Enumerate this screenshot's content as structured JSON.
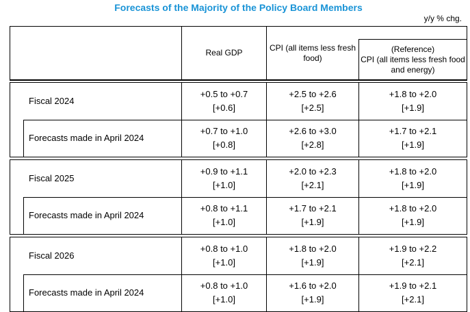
{
  "title": "Forecasts of the Majority of the Policy Board Members",
  "unit_note": "y/y % chg.",
  "colors": {
    "title_blue": "#1993d6",
    "border": "#000000",
    "text": "#000000",
    "background": "#ffffff"
  },
  "table": {
    "column_headers": {
      "period": "",
      "real_gdp": "Real GDP",
      "cpi": "CPI (all items less fresh food)",
      "reference_label": "(Reference)",
      "reference_name": "CPI (all items less fresh food and energy)"
    },
    "april_row_label": "Forecasts made in April 2024",
    "groups": [
      {
        "period": "Fiscal 2024",
        "current": {
          "gdp": "+0.5 to +0.7",
          "gdp_median": "[+0.6]",
          "cpi": "+2.5 to +2.6",
          "cpi_median": "[+2.5]",
          "ref": "+1.8 to +2.0",
          "ref_median": "[+1.9]"
        },
        "april_label": "Forecasts made in April 2024",
        "april": {
          "gdp": "+0.7 to +1.0",
          "gdp_median": "[+0.8]",
          "cpi": "+2.6 to +3.0",
          "cpi_median": "[+2.8]",
          "ref": "+1.7 to +2.1",
          "ref_median": "[+1.9]"
        }
      },
      {
        "period": "Fiscal 2025",
        "current": {
          "gdp": "+0.9 to +1.1",
          "gdp_median": "[+1.0]",
          "cpi": "+2.0 to +2.3",
          "cpi_median": "[+2.1]",
          "ref": "+1.8 to +2.0",
          "ref_median": "[+1.9]"
        },
        "april_label": "Forecasts made in April 2024",
        "april": {
          "gdp": "+0.8 to +1.1",
          "gdp_median": "[+1.0]",
          "cpi": "+1.7 to +2.1",
          "cpi_median": "[+1.9]",
          "ref": "+1.8 to +2.0",
          "ref_median": "[+1.9]"
        }
      },
      {
        "period": "Fiscal 2026",
        "current": {
          "gdp": "+0.8 to +1.0",
          "gdp_median": "[+1.0]",
          "cpi": "+1.8 to +2.0",
          "cpi_median": "[+1.9]",
          "ref": "+1.9 to +2.2",
          "ref_median": "[+2.1]"
        },
        "april_label": "Forecasts made in April 2024",
        "april": {
          "gdp": "+0.8 to +1.0",
          "gdp_median": "[+1.0]",
          "cpi": "+1.6 to +2.0",
          "cpi_median": "[+1.9]",
          "ref": "+1.9 to +2.1",
          "ref_median": "[+2.1]"
        }
      }
    ]
  }
}
